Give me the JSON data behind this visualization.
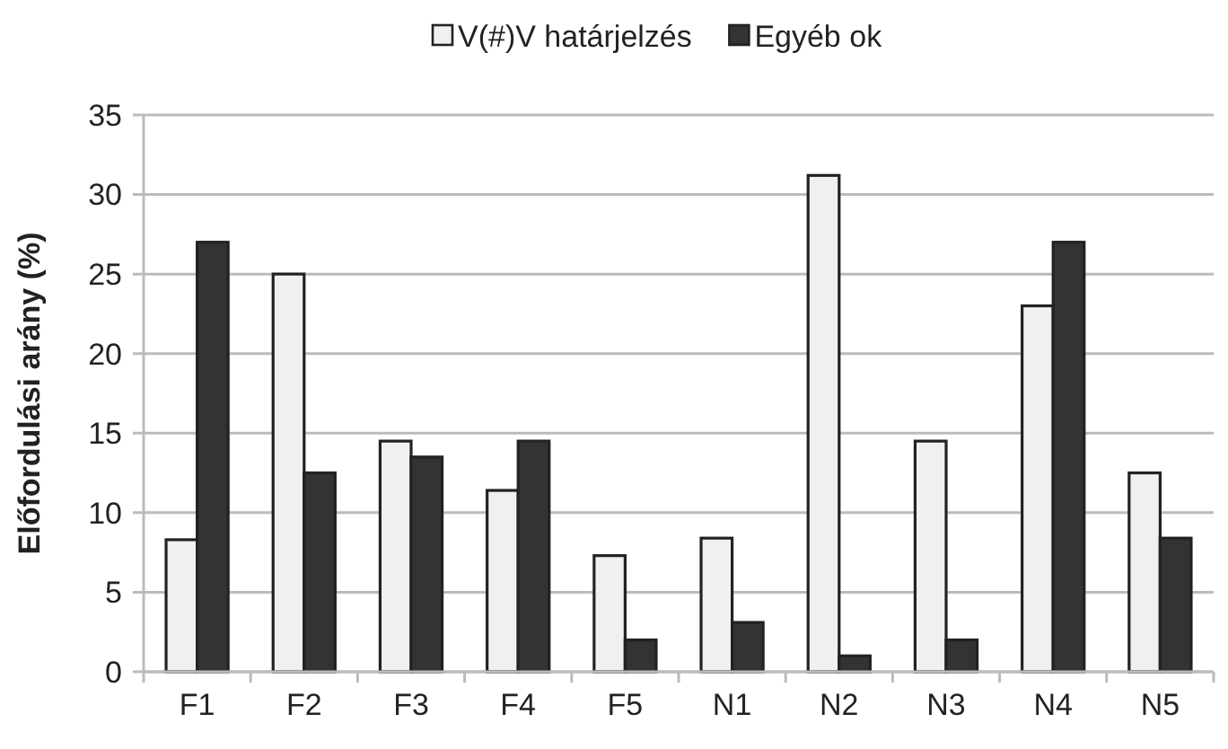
{
  "chart_data": {
    "type": "bar",
    "ylabel": "Előfordulási arány (%)",
    "categories": [
      "F1",
      "F2",
      "F3",
      "F4",
      "F5",
      "N1",
      "N2",
      "N3",
      "N4",
      "N5"
    ],
    "series": [
      {
        "name": "V(#)V határjelzés",
        "color": "#f0f0f0",
        "values": [
          8.3,
          25,
          14.5,
          11.4,
          7.3,
          8.4,
          31.2,
          14.5,
          23,
          12.5
        ]
      },
      {
        "name": "Egyéb ok",
        "color": "#333333",
        "values": [
          27,
          12.5,
          13.5,
          14.5,
          2,
          3.1,
          1,
          2,
          27,
          8.4
        ]
      }
    ],
    "ylim": [
      0,
      35
    ],
    "yticks": [
      0,
      5,
      10,
      15,
      20,
      25,
      30,
      35
    ],
    "grid": "y",
    "legend": "top"
  }
}
